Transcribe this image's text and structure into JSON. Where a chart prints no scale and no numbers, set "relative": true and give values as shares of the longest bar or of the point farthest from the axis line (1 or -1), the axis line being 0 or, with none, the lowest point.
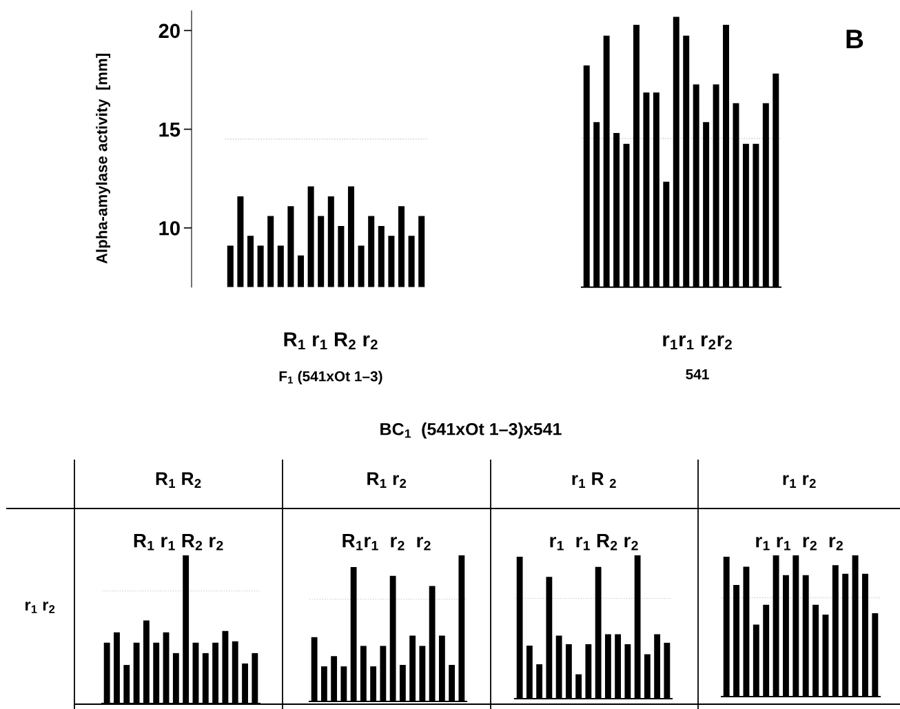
{
  "chart_data": [
    {
      "type": "bar",
      "categories": [
        null,
        null,
        null,
        null,
        null,
        null,
        null,
        null,
        null,
        null,
        null,
        null,
        null,
        null,
        null,
        null,
        null,
        null,
        null,
        null
      ],
      "values": [
        9.1,
        11.6,
        9.6,
        9.1,
        10.6,
        9.1,
        11.1,
        8.6,
        12.1,
        10.6,
        11.6,
        10.1,
        12.1,
        9.1,
        10.6,
        10.1,
        9.6,
        11.1,
        9.6,
        10.6
      ],
      "color": "#000000",
      "ylim": [
        7,
        21
      ],
      "yticks": [
        10,
        15,
        20
      ],
      "tick_labels": "y",
      "ylabel": "Alpha-amylase activity  [mm]",
      "xlabel": "R$_{1}$ r$_{1}$ R$_{2}$ r$_{2}$",
      "annotations": [
        "F$_{1}$ (541xOt 1–3)"
      ],
      "ref_lines": [
        {
          "axis": "y",
          "value": 14.5,
          "color": "#bbbbbb",
          "line_style": "dotted"
        }
      ]
    },
    {
      "type": "bar",
      "categories": [
        null,
        null,
        null,
        null,
        null,
        null,
        null,
        null,
        null,
        null,
        null,
        null,
        null,
        null,
        null,
        null,
        null,
        null,
        null,
        null
      ],
      "values": [
        0.82,
        0.61,
        0.93,
        0.57,
        0.53,
        0.97,
        0.72,
        0.72,
        0.39,
        1,
        0.93,
        0.75,
        0.61,
        0.75,
        0.97,
        0.68,
        0.53,
        0.53,
        0.68,
        0.79
      ],
      "color": "#000000",
      "relative": true,
      "tick_labels": false,
      "xlabel": "r$_{1}$r$_{1}$ r$_{2}$r$_{2}$",
      "annotations": [
        "541",
        "B"
      ],
      "ref_lines": [
        {
          "axis": "y",
          "value": 0.55,
          "color": "#bbbbbb",
          "line_style": "dotted"
        }
      ]
    },
    {
      "type": "bar",
      "relative": true,
      "tick_labels": false,
      "categories": [
        null,
        null,
        null,
        null,
        null,
        null,
        null,
        null,
        null,
        null,
        null,
        null,
        null,
        null,
        null,
        null
      ],
      "values": [
        0.41,
        0.48,
        0.26,
        0.41,
        0.56,
        0.41,
        0.48,
        0.34,
        1,
        0.41,
        0.34,
        0.41,
        0.49,
        0.42,
        0.27,
        0.34
      ],
      "color": "#000000",
      "title": "R$_{1}$ R$_{2}$",
      "subtitle": "R$_{1}$ r$_{1}$ R$_{2}$ r$_{2}$",
      "annotations": [
        "BC$_{1}$  (541xOt 1–3)x541",
        "r$_{1}$ r$_{2}$"
      ],
      "ref_lines": [
        {
          "axis": "y",
          "value": 0.76,
          "color": "#cccccc",
          "line_style": "dotted"
        }
      ]
    },
    {
      "type": "bar",
      "relative": true,
      "tick_labels": false,
      "categories": [
        null,
        null,
        null,
        null,
        null,
        null,
        null,
        null,
        null,
        null,
        null,
        null,
        null,
        null,
        null,
        null
      ],
      "values": [
        0.44,
        0.24,
        0.31,
        0.24,
        0.92,
        0.38,
        0.24,
        0.38,
        0.86,
        0.25,
        0.45,
        0.38,
        0.79,
        0.45,
        0.25,
        1
      ],
      "color": "#000000",
      "title": "R$_{1}$ r$_{2}$",
      "subtitle": "R$_{1}$r$_{1}$  r$_{2}$  r$_{2}$",
      "ref_lines": [
        {
          "axis": "y",
          "value": 0.7,
          "color": "#cccccc",
          "line_style": "dotted"
        }
      ]
    },
    {
      "type": "bar",
      "relative": true,
      "tick_labels": false,
      "categories": [
        null,
        null,
        null,
        null,
        null,
        null,
        null,
        null,
        null,
        null,
        null,
        null,
        null,
        null,
        null,
        null
      ],
      "values": [
        0.99,
        0.37,
        0.24,
        0.85,
        0.44,
        0.38,
        0.17,
        0.38,
        0.92,
        0.45,
        0.45,
        0.38,
        1,
        0.31,
        0.45,
        0.39
      ],
      "color": "#000000",
      "title": "r$_{1}$ R $_{2}$",
      "subtitle": "r$_{1}$  r$_{1}$ R$_{2}$ r$_{2}$",
      "ref_lines": [
        {
          "axis": "y",
          "value": 0.7,
          "color": "#cccccc",
          "line_style": "dotted"
        }
      ]
    },
    {
      "type": "bar",
      "relative": true,
      "tick_labels": false,
      "categories": [
        null,
        null,
        null,
        null,
        null,
        null,
        null,
        null,
        null,
        null,
        null,
        null,
        null,
        null,
        null,
        null
      ],
      "values": [
        0.99,
        0.79,
        0.92,
        0.51,
        0.65,
        1,
        0.86,
        1,
        0.86,
        0.65,
        0.58,
        0.93,
        0.87,
        1,
        0.87,
        0.59
      ],
      "color": "#000000",
      "title": "r$_{1}$ r$_{2}$",
      "subtitle": "r$_{1}$ r$_{1}$  r$_{2}$  r$_{2}$",
      "ref_lines": [
        {
          "axis": "y",
          "value": 0.7,
          "color": "#cccccc",
          "line_style": "dotted"
        }
      ]
    }
  ]
}
